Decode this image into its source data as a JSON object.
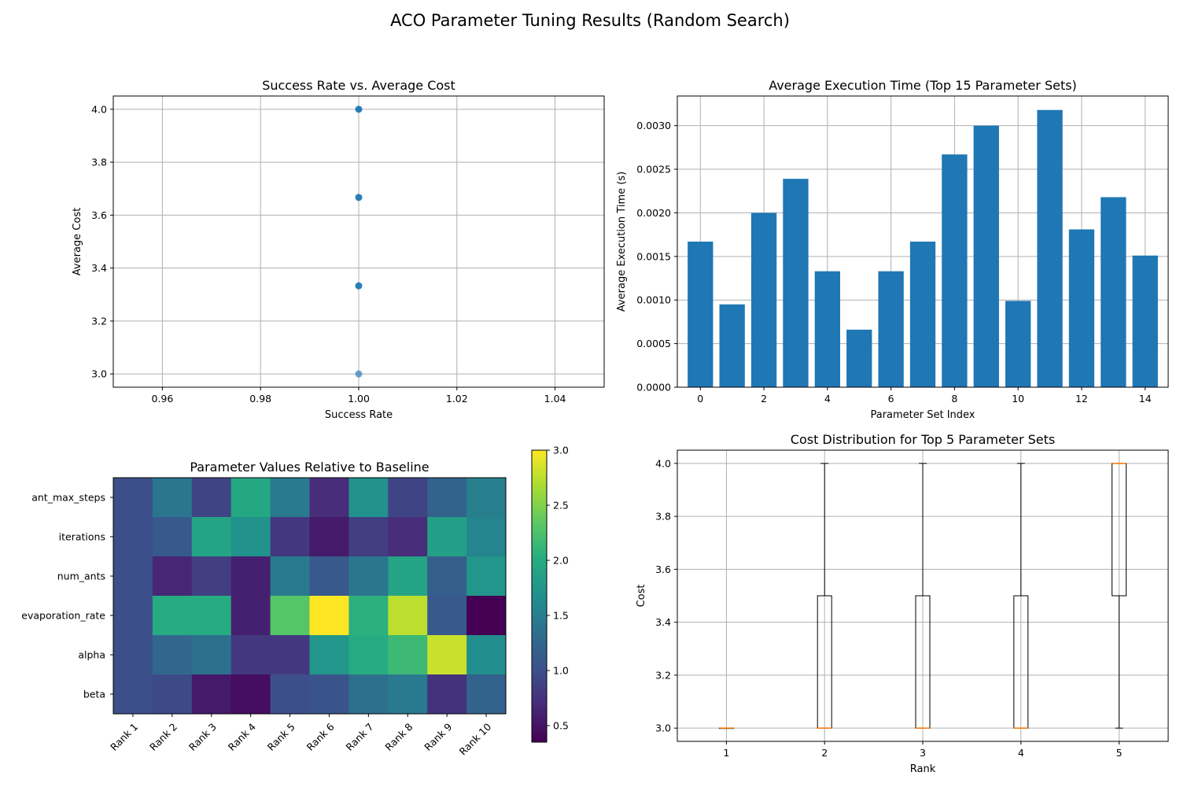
{
  "figure": {
    "suptitle": "ACO Parameter Tuning Results (Random Search)"
  },
  "chart_data": [
    {
      "type": "scatter",
      "title": "Success Rate vs. Average Cost",
      "xlabel": "Success Rate",
      "ylabel": "Average Cost",
      "xlim": [
        0.95,
        1.05
      ],
      "ylim": [
        2.95,
        4.05
      ],
      "xticks": [
        "0.96",
        "0.98",
        "1.00",
        "1.02",
        "1.04"
      ],
      "yticks": [
        "3.0",
        "3.2",
        "3.4",
        "3.6",
        "3.8",
        "4.0"
      ],
      "grid": true,
      "points": [
        {
          "x": 1.0,
          "y": 4.0
        },
        {
          "x": 1.0,
          "y": 3.667
        },
        {
          "x": 1.0,
          "y": 3.333
        },
        {
          "x": 1.0,
          "y": 3.0
        }
      ],
      "color": "#1f77b4"
    },
    {
      "type": "bar",
      "title": "Average Execution Time (Top 15 Parameter Sets)",
      "xlabel": "Parameter Set Index",
      "ylabel": "Average Execution Time (s)",
      "categories": [
        0,
        1,
        2,
        3,
        4,
        5,
        6,
        7,
        8,
        9,
        10,
        11,
        12,
        13,
        14
      ],
      "values": [
        0.00167,
        0.00095,
        0.002,
        0.00239,
        0.00133,
        0.00066,
        0.00133,
        0.00167,
        0.00267,
        0.003,
        0.00099,
        0.00318,
        0.00181,
        0.00218,
        0.00151
      ],
      "xticks": [
        "0",
        "2",
        "4",
        "6",
        "8",
        "10",
        "12",
        "14"
      ],
      "yticks": [
        "0.0000",
        "0.0005",
        "0.0010",
        "0.0015",
        "0.0020",
        "0.0025",
        "0.0030"
      ],
      "ylim": [
        0,
        0.00334
      ],
      "grid": true,
      "color": "#1f77b4"
    },
    {
      "type": "heatmap",
      "title": "Parameter Values Relative to Baseline",
      "rows": [
        "ant_max_steps",
        "iterations",
        "num_ants",
        "evaporation_rate",
        "alpha",
        "beta"
      ],
      "columns": [
        "Rank 1",
        "Rank 2",
        "Rank 3",
        "Rank 4",
        "Rank 5",
        "Rank 6",
        "Rank 7",
        "Rank 8",
        "Rank 9",
        "Rank 10"
      ],
      "values": [
        [
          1.0,
          1.4,
          0.9,
          1.95,
          1.45,
          0.7,
          1.7,
          0.9,
          1.2,
          1.5
        ],
        [
          1.0,
          1.1,
          1.9,
          1.7,
          0.8,
          0.55,
          0.85,
          0.7,
          1.85,
          1.55
        ],
        [
          1.0,
          0.65,
          0.85,
          0.6,
          1.45,
          1.1,
          1.4,
          1.9,
          1.15,
          1.75
        ],
        [
          1.0,
          2.0,
          2.0,
          0.6,
          2.3,
          3.0,
          2.05,
          2.75,
          1.1,
          0.35
        ],
        [
          1.0,
          1.25,
          1.35,
          0.8,
          0.8,
          1.75,
          2.0,
          2.15,
          2.8,
          1.65
        ],
        [
          1.0,
          0.95,
          0.55,
          0.45,
          1.0,
          1.05,
          1.35,
          1.45,
          0.75,
          1.2
        ]
      ],
      "colorbar": {
        "min": 0.35,
        "max": 3.0,
        "ticks": [
          "0.5",
          "1.0",
          "1.5",
          "2.0",
          "2.5",
          "3.0"
        ]
      },
      "colormap": "viridis"
    },
    {
      "type": "box",
      "title": "Cost Distribution for Top 5 Parameter Sets",
      "xlabel": "Rank",
      "ylabel": "Cost",
      "categories": [
        "1",
        "2",
        "3",
        "4",
        "5"
      ],
      "ylim": [
        2.95,
        4.05
      ],
      "yticks": [
        "3.0",
        "3.2",
        "3.4",
        "3.6",
        "3.8",
        "4.0"
      ],
      "grid": true,
      "boxes": [
        {
          "min": 3.0,
          "q1": 3.0,
          "median": 3.0,
          "q3": 3.0,
          "max": 3.0
        },
        {
          "min": 3.0,
          "q1": 3.0,
          "median": 3.0,
          "q3": 3.5,
          "max": 4.0
        },
        {
          "min": 3.0,
          "q1": 3.0,
          "median": 3.0,
          "q3": 3.5,
          "max": 4.0
        },
        {
          "min": 3.0,
          "q1": 3.0,
          "median": 3.0,
          "q3": 3.5,
          "max": 4.0
        },
        {
          "min": 3.0,
          "q1": 3.5,
          "median": 4.0,
          "q3": 4.0,
          "max": 4.0
        }
      ],
      "median_color": "#ff7f0e"
    }
  ]
}
